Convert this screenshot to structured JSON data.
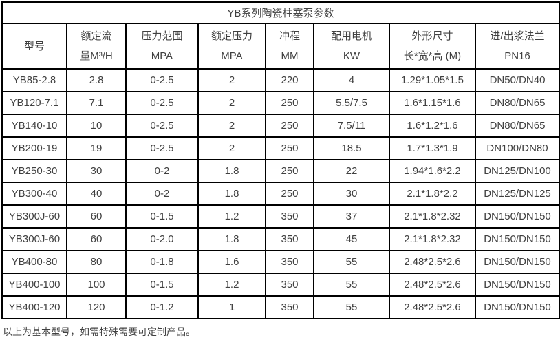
{
  "title": "YB系列陶瓷柱塞泵参数",
  "table": {
    "headers": [
      {
        "line1": "型号",
        "line2": ""
      },
      {
        "line1": "额定流",
        "line2": "量M³/H"
      },
      {
        "line1": "压力范围",
        "line2": "MPA"
      },
      {
        "line1": "额定压力",
        "line2": "MPA"
      },
      {
        "line1": "冲程",
        "line2": "MM"
      },
      {
        "line1": "配用电机",
        "line2": "KW"
      },
      {
        "line1": "外形尺寸",
        "line2": "长*宽*高 (M)"
      },
      {
        "line1": "进/出浆法兰",
        "line2": "PN16"
      }
    ],
    "rows": [
      [
        "YB85-2.8",
        "2.8",
        "0-2.5",
        "2",
        "220",
        "4",
        "1.29*1.05*1.5",
        "DN50/DN40"
      ],
      [
        "YB120-7.1",
        "7.1",
        "0-2.5",
        "2",
        "250",
        "5.5/7.5",
        "1.6*1.15*1.6",
        "DN80/DN65"
      ],
      [
        "YB140-10",
        "10",
        "0-2.5",
        "2",
        "250",
        "7.5/11",
        "1.6*1.2*1.6",
        "DN80/DN65"
      ],
      [
        "YB200-19",
        "19",
        "0-2.5",
        "2",
        "250",
        "18.5",
        "1.7*1.3*1.9",
        "DN100/DN80"
      ],
      [
        "YB250-30",
        "30",
        "0-2",
        "1.8",
        "250",
        "22",
        "1.94*1.6*2.2",
        "DN125/DN100"
      ],
      [
        "YB300-40",
        "40",
        "0-2",
        "1.8",
        "250",
        "30",
        "2.1*1.8*2.2",
        "DN125/DN125"
      ],
      [
        "YB300J-60",
        "60",
        "0-1.5",
        "1.2",
        "350",
        "37",
        "2.1*1.8*2.32",
        "DN150/DN150"
      ],
      [
        "YB300J-60",
        "60",
        "0-2.0",
        "1.8",
        "350",
        "45",
        "2.1*1.8*2.32",
        "DN150/DN150"
      ],
      [
        "YB400-80",
        "80",
        "0-1.8",
        "1.6",
        "350",
        "55",
        "2.48*2.5*2.6",
        "DN150/DN150"
      ],
      [
        "YB400-100",
        "100",
        "0-1.5",
        "1.2",
        "350",
        "55",
        "2.48*2.5*2.6",
        "DN150/DN150"
      ],
      [
        "YB400-120",
        "120",
        "0-1.2",
        "1",
        "350",
        "55",
        "2.48*2.5*2.6",
        "DN150/DN150"
      ]
    ]
  },
  "footer": {
    "note": "以上为基本型号，如需特殊需要可定制产品。"
  },
  "colors": {
    "border": "#000000",
    "text": "#404040",
    "background": "#ffffff"
  }
}
